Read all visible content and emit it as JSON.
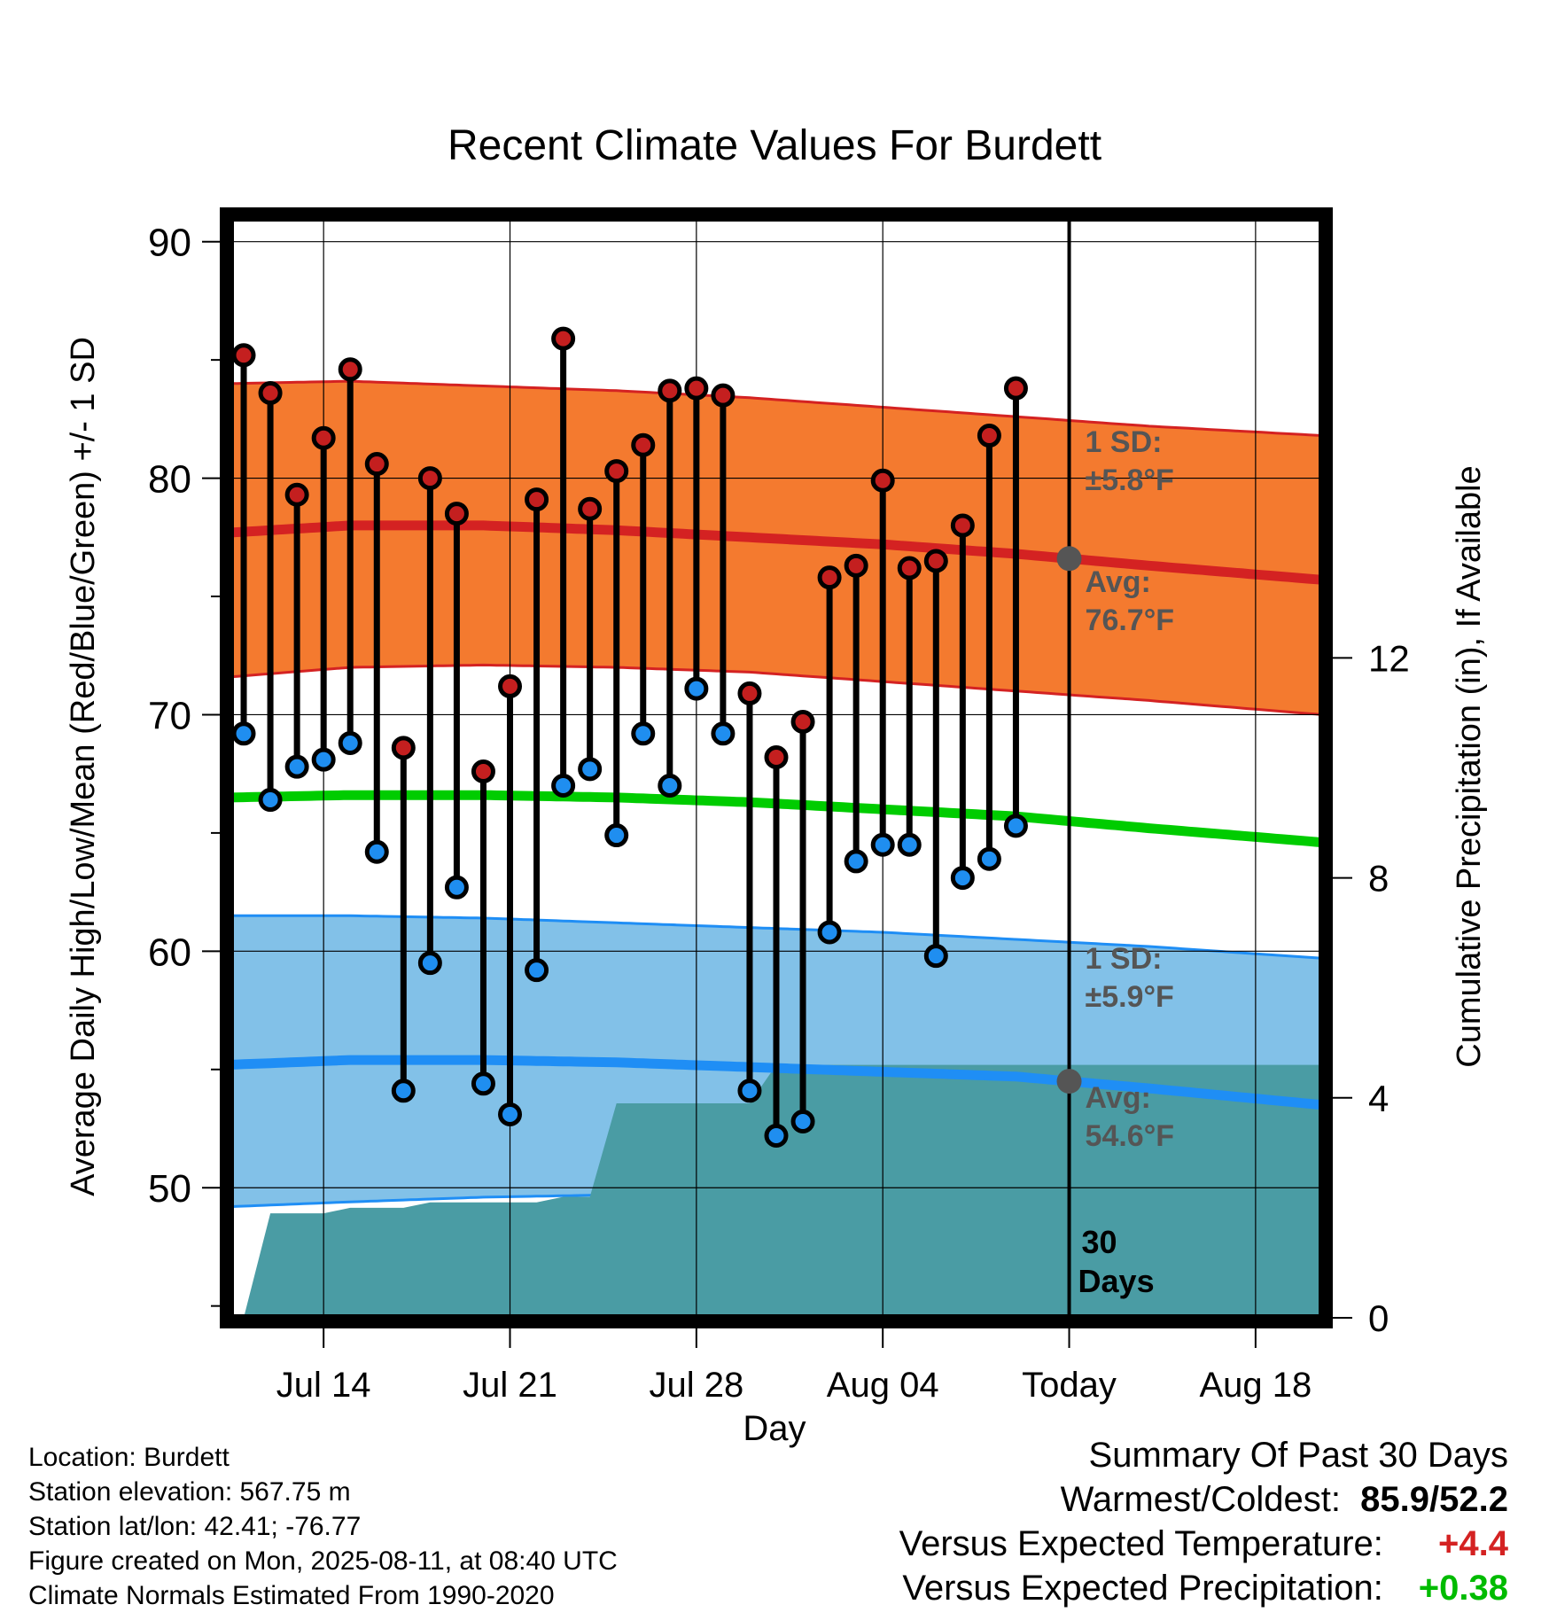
{
  "chart_data": {
    "type": "line",
    "title": "Recent Climate Values For Burdett",
    "xlabel": "Day",
    "ylabel": "Average Daily High/Low/Mean (Red/Blue/Green) +/- 1 SD",
    "y2label": "Cumulative Precipitation (in), If Available",
    "ylim": [
      44.5,
      91
    ],
    "y2lim": [
      0,
      20
    ],
    "y_ticks": [
      "90",
      "80",
      "70",
      "60",
      "50"
    ],
    "y2_ticks": [
      "12",
      "8",
      "4",
      "0"
    ],
    "x_ticks": [
      {
        "day": 14,
        "label": "Jul 14"
      },
      {
        "day": 21,
        "label": "Jul 21"
      },
      {
        "day": 28,
        "label": "Jul 28"
      },
      {
        "day": 35,
        "label": "Aug 04"
      },
      {
        "day": 42,
        "label": "Today"
      },
      {
        "day": 49,
        "label": "Aug 18"
      }
    ],
    "x_axis_note": "x = day number counted from Jul 1 (Jul 31 = 31, Aug 04 = 35, Today = Aug 11 = 42)",
    "xlim": [
      10.5,
      51.5
    ],
    "grid": true,
    "today_day": 42,
    "days": [
      11,
      12,
      13,
      14,
      15,
      16,
      17,
      18,
      19,
      20,
      21,
      22,
      23,
      24,
      25,
      26,
      27,
      28,
      29,
      30,
      31,
      32,
      33,
      34,
      35,
      36,
      37,
      38,
      39,
      40,
      41
    ],
    "highs": [
      85.2,
      83.6,
      79.3,
      81.7,
      84.6,
      80.6,
      68.6,
      80.0,
      78.5,
      67.6,
      71.2,
      79.1,
      85.9,
      78.7,
      80.3,
      81.4,
      83.7,
      83.8,
      83.5,
      70.9,
      68.2,
      69.7,
      75.8,
      76.3,
      79.9,
      76.2,
      76.5,
      78.0,
      81.8,
      83.8,
      null
    ],
    "lows": [
      69.2,
      66.4,
      67.8,
      68.1,
      68.8,
      64.2,
      54.1,
      59.5,
      62.7,
      54.4,
      53.1,
      59.2,
      67.0,
      67.7,
      64.9,
      69.2,
      67.0,
      71.1,
      69.2,
      54.1,
      52.2,
      52.8,
      60.8,
      63.8,
      64.5,
      64.5,
      59.8,
      63.1,
      63.9,
      65.3,
      null
    ],
    "normals": {
      "days": [
        10.5,
        15,
        20,
        25,
        30,
        35,
        40,
        45,
        51.5
      ],
      "high_avg": [
        77.7,
        78.0,
        78.0,
        77.8,
        77.5,
        77.2,
        76.8,
        76.3,
        75.7
      ],
      "high_sd_upper": [
        84.0,
        84.1,
        83.9,
        83.7,
        83.4,
        83.0,
        82.6,
        82.2,
        81.8
      ],
      "high_sd_lower": [
        71.6,
        72.0,
        72.1,
        72.0,
        71.8,
        71.4,
        71.0,
        70.6,
        70.0
      ],
      "mean_avg": [
        66.5,
        66.6,
        66.6,
        66.5,
        66.3,
        66.0,
        65.7,
        65.2,
        64.6
      ],
      "low_avg": [
        55.2,
        55.4,
        55.4,
        55.3,
        55.1,
        54.9,
        54.7,
        54.2,
        53.5
      ],
      "low_sd_upper": [
        61.5,
        61.5,
        61.4,
        61.2,
        61.0,
        60.8,
        60.5,
        60.2,
        59.7
      ],
      "low_sd_lower": [
        49.2,
        49.4,
        49.6,
        49.7,
        49.6,
        49.5,
        49.2,
        48.8,
        48.3
      ]
    },
    "precip_cumulative": {
      "days": [
        11,
        12,
        13,
        14,
        15,
        16,
        17,
        18,
        19,
        20,
        21,
        22,
        23,
        24,
        25,
        26,
        27,
        28,
        29,
        30,
        31,
        32,
        33,
        34,
        35,
        36,
        37,
        38,
        39,
        40,
        41,
        51.5
      ],
      "values": [
        0,
        1.9,
        1.9,
        1.9,
        2.0,
        2.0,
        2.0,
        2.1,
        2.1,
        2.1,
        2.1,
        2.1,
        2.2,
        2.2,
        3.9,
        3.9,
        3.9,
        3.9,
        3.9,
        3.9,
        4.6,
        4.6,
        4.6,
        4.6,
        4.6,
        4.6,
        4.6,
        4.6,
        4.6,
        4.6,
        4.6,
        4.6
      ]
    },
    "annotations": {
      "high_sd_label": "1 SD:",
      "high_sd_value": "±5.8°F",
      "high_avg_label": "Avg:",
      "high_avg_value": "76.7°F",
      "low_sd_label": "1 SD:",
      "low_sd_value": "±5.9°F",
      "low_avg_label": "Avg:",
      "low_avg_value": "54.6°F",
      "days_label_1": "30",
      "days_label_2": "Days"
    },
    "colors": {
      "high_band": "#f47a2f",
      "high_line": "#d42222",
      "low_band": "#82c1e8",
      "low_line": "#1f8ef5",
      "mean_line": "#00cc00",
      "precip": "#4a9ca4",
      "high_marker": "#c41f1f",
      "low_marker": "#1f8ef0",
      "annotation_text": "#555555",
      "today_marker": "#555555"
    }
  },
  "info": {
    "location": "Location: Burdett",
    "elevation": "Station elevation: 567.75 m",
    "latlon": "Station lat/lon: 42.41; -76.77",
    "created": "Figure created on Mon, 2025-08-11, at 08:40 UTC",
    "normals": "Climate Normals Estimated From 1990-2020"
  },
  "summary": {
    "title": "Summary Of Past 30 Days",
    "warm_cold_label": "Warmest/Coldest:",
    "warm_cold_value": "85.9/52.2",
    "temp_label": "Versus Expected Temperature:",
    "temp_value": "+4.4",
    "temp_color": "#d42222",
    "precip_label": "Versus Expected Precipitation:",
    "precip_value": "+0.38",
    "precip_color": "#00bb00"
  }
}
